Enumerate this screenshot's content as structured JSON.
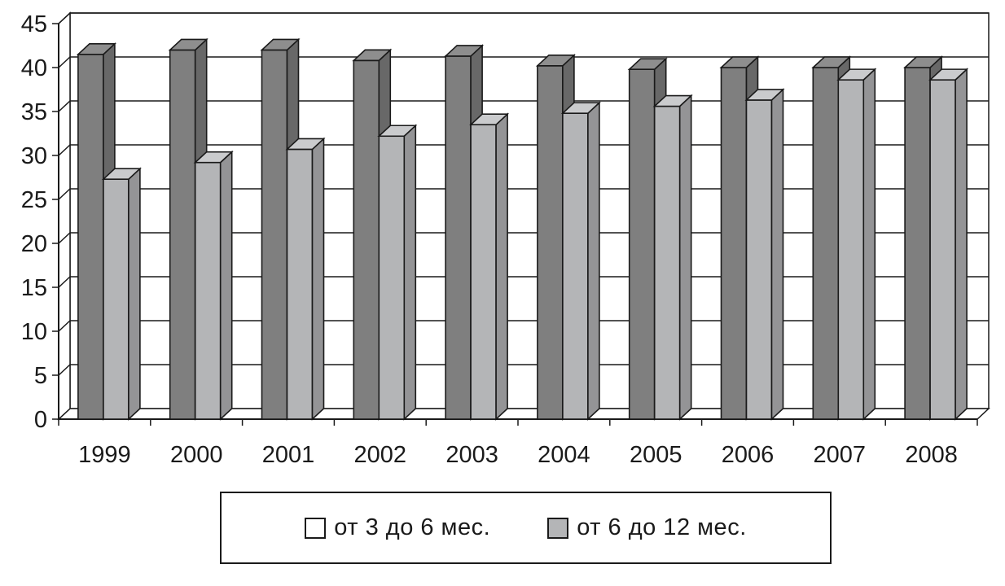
{
  "chart_data": {
    "type": "bar",
    "title": "",
    "xlabel": "",
    "ylabel": "",
    "ylim": [
      0,
      45
    ],
    "yticks": [
      0,
      5,
      10,
      15,
      20,
      25,
      30,
      35,
      40,
      45
    ],
    "grid": true,
    "style": "3d-clustered-column",
    "legend_position": "bottom",
    "categories": [
      "1999",
      "2000",
      "2001",
      "2002",
      "2003",
      "2004",
      "2005",
      "2006",
      "2007",
      "2008"
    ],
    "series": [
      {
        "name": "от 3 до 6 мес.",
        "color": "#7f7f7f",
        "legend_color": "#ffffff",
        "values": [
          41.5,
          42,
          42,
          40.8,
          41.3,
          40.2,
          39.8,
          40,
          40,
          40
        ]
      },
      {
        "name": "от 6 до 12 мес.",
        "color": "#b4b5b7",
        "legend_color": "#b4b5b7",
        "values": [
          27.3,
          29.2,
          30.7,
          32.2,
          33.5,
          34.8,
          35.6,
          36.3,
          38.6,
          38.6
        ]
      }
    ]
  }
}
